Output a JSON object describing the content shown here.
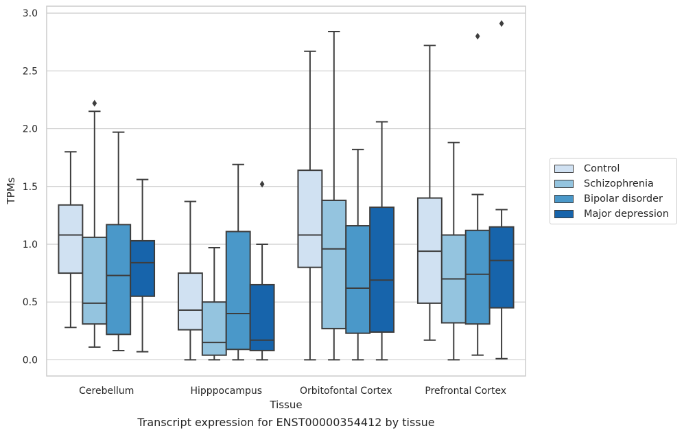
{
  "chart_data": {
    "type": "boxplot",
    "caption": "Transcript expression for ENST00000354412 by tissue",
    "xlabel": "Tissue",
    "ylabel": "TPMs",
    "ylim": [
      -0.14,
      3.06
    ],
    "yticks": [
      "0.0",
      "0.5",
      "1.0",
      "1.5",
      "2.0",
      "2.5",
      "3.0"
    ],
    "grid": "horizontal",
    "legend_position": "right",
    "categories": [
      "Cerebellum",
      "Hipppocampus",
      "Orbitofontal Cortex",
      "Prefrontal Cortex"
    ],
    "series": [
      {
        "name": "Control",
        "color": "#d0e1f2",
        "boxes": [
          {
            "whislo": 0.28,
            "q1": 0.75,
            "med": 1.08,
            "q3": 1.34,
            "whishi": 1.8,
            "fliers": []
          },
          {
            "whislo": 0.0,
            "q1": 0.26,
            "med": 0.43,
            "q3": 0.75,
            "whishi": 1.37,
            "fliers": []
          },
          {
            "whislo": 0.0,
            "q1": 0.8,
            "med": 1.08,
            "q3": 1.64,
            "whishi": 2.67,
            "fliers": []
          },
          {
            "whislo": 0.17,
            "q1": 0.49,
            "med": 0.94,
            "q3": 1.4,
            "whishi": 2.72,
            "fliers": []
          }
        ]
      },
      {
        "name": "Schizophrenia",
        "color": "#94c4df",
        "boxes": [
          {
            "whislo": 0.11,
            "q1": 0.31,
            "med": 0.49,
            "q3": 1.06,
            "whishi": 2.15,
            "fliers": [
              2.22
            ]
          },
          {
            "whislo": 0.0,
            "q1": 0.04,
            "med": 0.15,
            "q3": 0.5,
            "whishi": 0.97,
            "fliers": []
          },
          {
            "whislo": 0.0,
            "q1": 0.27,
            "med": 0.96,
            "q3": 1.38,
            "whishi": 2.84,
            "fliers": []
          },
          {
            "whislo": 0.0,
            "q1": 0.32,
            "med": 0.7,
            "q3": 1.08,
            "whishi": 1.88,
            "fliers": []
          }
        ]
      },
      {
        "name": "Bipolar disorder",
        "color": "#4a98c9",
        "boxes": [
          {
            "whislo": 0.08,
            "q1": 0.22,
            "med": 0.73,
            "q3": 1.17,
            "whishi": 1.97,
            "fliers": []
          },
          {
            "whislo": 0.0,
            "q1": 0.09,
            "med": 0.4,
            "q3": 1.11,
            "whishi": 1.69,
            "fliers": []
          },
          {
            "whislo": 0.0,
            "q1": 0.23,
            "med": 0.62,
            "q3": 1.16,
            "whishi": 1.82,
            "fliers": []
          },
          {
            "whislo": 0.04,
            "q1": 0.31,
            "med": 0.74,
            "q3": 1.12,
            "whishi": 1.43,
            "fliers": [
              2.8
            ]
          }
        ]
      },
      {
        "name": "Major depression",
        "color": "#1764ab",
        "boxes": [
          {
            "whislo": 0.07,
            "q1": 0.55,
            "med": 0.84,
            "q3": 1.03,
            "whishi": 1.56,
            "fliers": []
          },
          {
            "whislo": 0.0,
            "q1": 0.08,
            "med": 0.17,
            "q3": 0.65,
            "whishi": 1.0,
            "fliers": [
              1.52
            ]
          },
          {
            "whislo": 0.0,
            "q1": 0.24,
            "med": 0.69,
            "q3": 1.32,
            "whishi": 2.06,
            "fliers": []
          },
          {
            "whislo": 0.01,
            "q1": 0.45,
            "med": 0.86,
            "q3": 1.15,
            "whishi": 1.3,
            "fliers": [
              2.91
            ]
          }
        ]
      }
    ]
  }
}
